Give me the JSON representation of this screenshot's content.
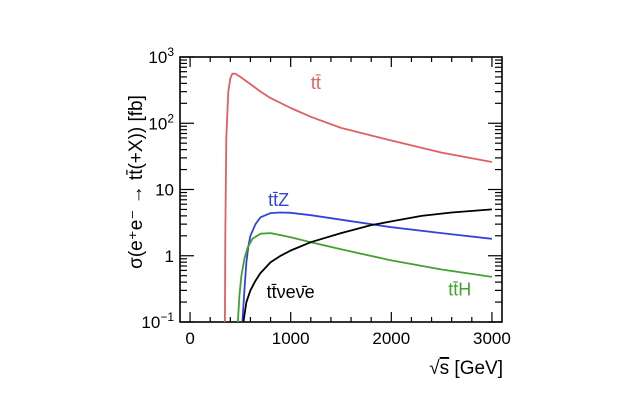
{
  "chart_data": {
    "type": "line",
    "title": "",
    "xlabel_prefix": "√",
    "xlabel_var": "s",
    "xlabel_unit": " [GeV]",
    "ylabel": "σ(e⁺e⁻ → tt̄(+X)) [fb]",
    "x_scale": "linear",
    "y_scale": "log",
    "xlim": [
      -100,
      3100
    ],
    "ylim": [
      0.1,
      1000
    ],
    "x_ticks": [
      0,
      1000,
      2000,
      3000
    ],
    "x_tick_labels": [
      "0",
      "1000",
      "2000",
      "3000"
    ],
    "y_ticks": [
      0.1,
      1,
      10,
      100,
      1000
    ],
    "y_tick_labels": [
      {
        "base": "10",
        "exp": "−1"
      },
      {
        "base": "1",
        "exp": ""
      },
      {
        "base": "10",
        "exp": ""
      },
      {
        "base": "10",
        "exp": "2"
      },
      {
        "base": "10",
        "exp": "3"
      }
    ],
    "series": [
      {
        "name": "tt̄",
        "label": "tt̄",
        "color": "#e06060",
        "x": [
          346,
          350,
          360,
          380,
          400,
          420,
          450,
          500,
          600,
          700,
          800,
          1000,
          1200,
          1500,
          2000,
          2500,
          3000
        ],
        "y": [
          0.1,
          2,
          60,
          300,
          470,
          560,
          560,
          500,
          390,
          300,
          240,
          170,
          125,
          85,
          55,
          36,
          26
        ]
      },
      {
        "name": "tt̄Z",
        "label": "tt̄Z",
        "color": "#3344dd",
        "x": [
          520,
          540,
          560,
          580,
          600,
          650,
          700,
          800,
          900,
          1000,
          1200,
          1500,
          2000,
          2500,
          3000
        ],
        "y": [
          0.1,
          0.3,
          0.8,
          1.4,
          2.0,
          3.0,
          3.8,
          4.4,
          4.5,
          4.45,
          4.1,
          3.5,
          2.7,
          2.2,
          1.8
        ]
      },
      {
        "name": "tt̄H",
        "label": "tt̄H",
        "color": "#44a033",
        "x": [
          475,
          490,
          510,
          540,
          570,
          620,
          700,
          800,
          900,
          1000,
          1200,
          1500,
          2000,
          2500,
          3000
        ],
        "y": [
          0.1,
          0.25,
          0.5,
          0.9,
          1.3,
          1.8,
          2.15,
          2.2,
          2.05,
          1.9,
          1.6,
          1.25,
          0.85,
          0.62,
          0.48
        ]
      },
      {
        "name": "tt̄νeν̄e",
        "label": "tt̄νeν̄e",
        "color": "#000000",
        "x": [
          530,
          560,
          600,
          650,
          700,
          800,
          900,
          1000,
          1200,
          1500,
          1800,
          2000,
          2300,
          2600,
          3000
        ],
        "y": [
          0.1,
          0.2,
          0.3,
          0.42,
          0.55,
          0.8,
          1.0,
          1.2,
          1.6,
          2.2,
          2.9,
          3.3,
          4.0,
          4.5,
          5.0
        ]
      }
    ],
    "label_positions": {
      "tt̄": [
        1250,
        330
      ],
      "tt̄Z": [
        880,
        5.6
      ],
      "tt̄H": [
        2680,
        0.25
      ],
      "tt̄νeν̄e": [
        1000,
        0.23
      ]
    }
  }
}
